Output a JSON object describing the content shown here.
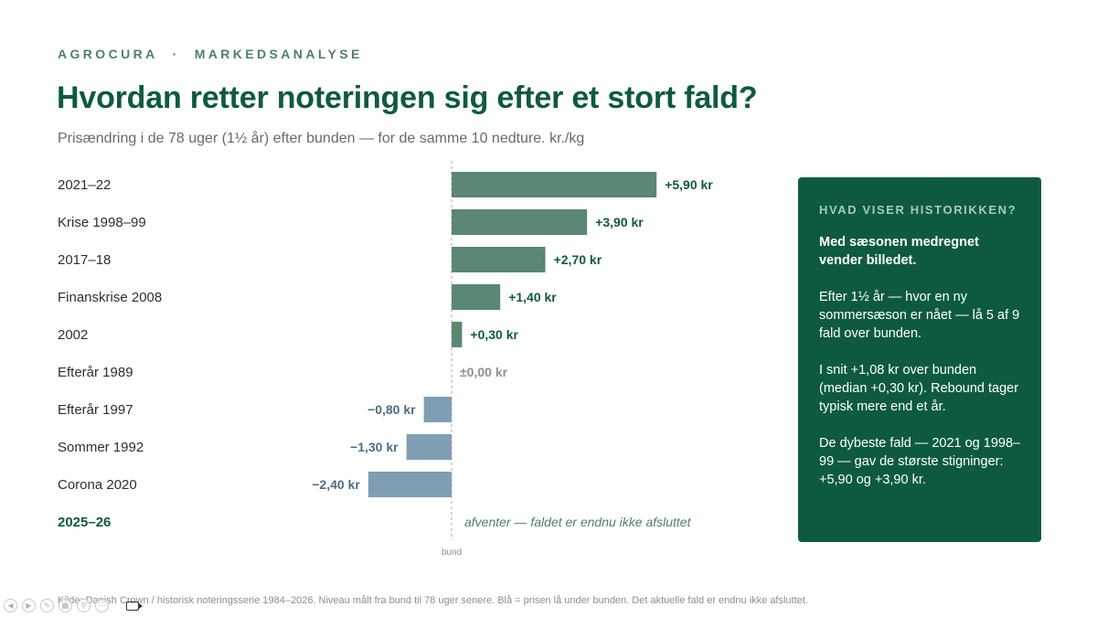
{
  "header": {
    "brand": "AGROCURA",
    "separator": "·",
    "section": "MARKEDSANALYSE",
    "title": "Hvordan retter noteringen sig efter et stort fald?",
    "subtitle": "Prisændring i de 78 uger (1½ år) efter bunden — for de samme 10 nedture. kr./kg"
  },
  "chart_data": {
    "type": "bar",
    "orientation": "horizontal",
    "categories": [
      "2021–22",
      "Krise 1998–99",
      "2017–18",
      "Finanskrise 2008",
      "2002",
      "Efterår 1989",
      "Efterår 1997",
      "Sommer 1992",
      "Corona 2020",
      "2025–26"
    ],
    "values": [
      5.9,
      3.9,
      2.7,
      1.4,
      0.3,
      0.0,
      -0.8,
      -1.3,
      -2.4,
      null
    ],
    "data_labels": [
      "+5,90 kr",
      "+3,90 kr",
      "+2,70 kr",
      "+1,40 kr",
      "+0,30 kr",
      "±0,00 kr",
      "−0,80 kr",
      "−1,30 kr",
      "−2,40 kr",
      "afventer — faldet er endnu ikke afsluttet"
    ],
    "baseline_label": "bund",
    "baseline": 0,
    "colors": {
      "positive": "#5a8872",
      "negative": "#7f9eb4",
      "positive_label": "#0e5a40",
      "negative_label": "#4c6d86",
      "zero_label": "#8c8f92",
      "pending_label": "#4f7f6b",
      "category_text": "#2c2f32",
      "highlight_category": "#0e5a40"
    }
  },
  "panel": {
    "heading": "HVAD VISER HISTORIKKEN?",
    "lead": "Med sæsonen medregnet vender billedet.",
    "paragraphs": [
      "Efter 1½ år — hvor en ny sommersæson er nået — lå 5 af 9 fald over bunden.",
      "I snit +1,08 kr over bunden (median +0,30 kr). Rebound tager typisk mere end et år.",
      "De dybeste fald — 2021 og 1998–99 — gav de største stigninger: +5,90 og +3,90 kr."
    ]
  },
  "footer": {
    "source": "Kilde: Danish Crown / historisk noteringsserie 1984–2026. Niveau målt fra bund til 78 uger senere. Blå = prisen lå under bunden. Det aktuelle fald er endnu ikke afsluttet."
  }
}
